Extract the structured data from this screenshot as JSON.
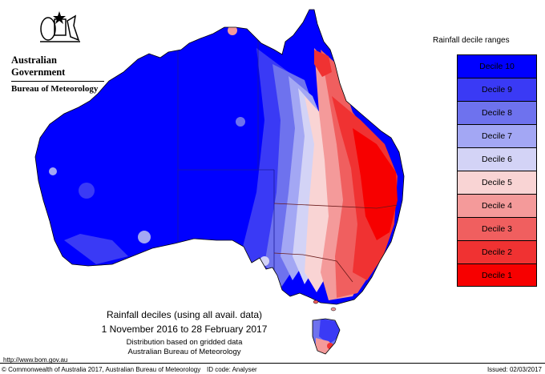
{
  "agency": {
    "government": "Australian Government",
    "bureau": "Bureau of Meteorology"
  },
  "legend": {
    "title": "Rainfall decile ranges",
    "items": [
      {
        "label": "Decile 10",
        "color": "#0000ff"
      },
      {
        "label": "Decile 9",
        "color": "#3a3af5"
      },
      {
        "label": "Decile 8",
        "color": "#6e72ee"
      },
      {
        "label": "Decile 7",
        "color": "#a3a7f4"
      },
      {
        "label": "Decile 6",
        "color": "#d3d3f6"
      },
      {
        "label": "Decile 5",
        "color": "#f9d4d4"
      },
      {
        "label": "Decile 4",
        "color": "#f49a9a"
      },
      {
        "label": "Decile 3",
        "color": "#f05f5f"
      },
      {
        "label": "Decile 2",
        "color": "#f03232"
      },
      {
        "label": "Decile 1",
        "color": "#f70000"
      }
    ]
  },
  "caption": {
    "title": "Rainfall deciles (using all avail. data)",
    "period": "1 November 2016 to 28 February 2017",
    "note1": "Distribution based on gridded data",
    "note2": "Australian Bureau of Meteorology"
  },
  "footer": {
    "url": "http://www.bom.gov.au",
    "copyright": "© Commonwealth of Australia 2017, Australian Bureau of Meteorology",
    "id_code": "ID code: Analyser",
    "issued": "Issued: 02/03/2017"
  }
}
